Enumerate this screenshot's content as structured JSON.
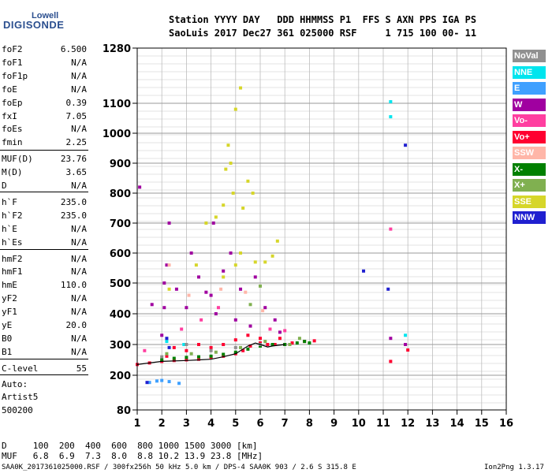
{
  "logo": {
    "top": "Lowell",
    "bottom": "DIGISONDE"
  },
  "header": {
    "line1": "Station YYYY DAY   DDD HHMMSS P1  FFS S AXN PPS IGA PS",
    "line2": "SaoLuis 2017 Dec27 361 025000 RSF     1 715 100 00- 11"
  },
  "params": [
    {
      "name": "foF2",
      "value": "6.500"
    },
    {
      "name": "foF1",
      "value": "N/A"
    },
    {
      "name": "foF1p",
      "value": "N/A"
    },
    {
      "name": "foE",
      "value": "N/A"
    },
    {
      "name": "foEp",
      "value": "0.39"
    },
    {
      "name": "fxI",
      "value": "7.05"
    },
    {
      "name": "foEs",
      "value": "N/A"
    },
    {
      "name": "fmin",
      "value": "2.25"
    },
    {
      "name": "MUF(D)",
      "value": "23.76"
    },
    {
      "name": "M(D)",
      "value": "3.65"
    },
    {
      "name": "D",
      "value": "N/A"
    },
    {
      "name": "h`F",
      "value": "235.0"
    },
    {
      "name": "h`F2",
      "value": "235.0"
    },
    {
      "name": "h`E",
      "value": "N/A"
    },
    {
      "name": "h`Es",
      "value": "N/A"
    },
    {
      "name": "hmF2",
      "value": "N/A"
    },
    {
      "name": "hmF1",
      "value": "N/A"
    },
    {
      "name": "hmE",
      "value": "110.0"
    },
    {
      "name": "yF2",
      "value": "N/A"
    },
    {
      "name": "yF1",
      "value": "N/A"
    },
    {
      "name": "yE",
      "value": "20.0"
    },
    {
      "name": "B0",
      "value": "N/A"
    },
    {
      "name": "B1",
      "value": "N/A"
    },
    {
      "name": "C-level",
      "value": "55"
    }
  ],
  "notes": {
    "auto": "Auto:",
    "artist": "Artist5",
    "version": "500200"
  },
  "legend": [
    {
      "label": "NoVal",
      "color": "#909090"
    },
    {
      "label": "NNE",
      "color": "#00e5ee"
    },
    {
      "label": "E",
      "color": "#3fa0ff"
    },
    {
      "label": "W",
      "color": "#a000a0"
    },
    {
      "label": "Vo-",
      "color": "#ff3fa0"
    },
    {
      "label": "Vo+",
      "color": "#ff0030"
    },
    {
      "label": "SSW",
      "color": "#ffb6a8"
    },
    {
      "label": "X-",
      "color": "#008000"
    },
    {
      "label": "X+",
      "color": "#80b050"
    },
    {
      "label": "SSE",
      "color": "#d6d62a"
    },
    {
      "label": "NNW",
      "color": "#2020d0"
    }
  ],
  "bottom": {
    "d_row": "D     100  200  400  600  800 1000 1500 3000 [km]",
    "muf_row": "MUF   6.8  6.9  7.3  8.0  8.8 10.2 13.9 23.8 [MHz]"
  },
  "footer": {
    "left": "SAA0K_2017361025000.RSF / 300fx256h 50 kHz 5.0 km / DPS-4 SAA0K 903 / 2.6 S 315.8 E",
    "right": "Ion2Png 1.3.17"
  },
  "chart_data": {
    "type": "scatter",
    "title": "",
    "xlabel": "",
    "ylabel": "",
    "xlim": [
      1,
      16
    ],
    "x_ticks": [
      1,
      2,
      3,
      4,
      5,
      6,
      7,
      8,
      9,
      10,
      11,
      12,
      13,
      14,
      15,
      16
    ],
    "y_ticks": [
      80,
      200,
      300,
      400,
      500,
      600,
      700,
      800,
      900,
      1000,
      1100,
      1280
    ],
    "y_scale": "nonlinear (height km)",
    "grid": true,
    "legend_placement": "right",
    "series": [
      {
        "name": "Vo+",
        "points": [
          [
            1.0,
            235
          ],
          [
            1.5,
            240
          ],
          [
            2.0,
            245
          ],
          [
            2.5,
            248
          ],
          [
            3.0,
            250
          ],
          [
            3.5,
            252
          ],
          [
            4.0,
            258
          ],
          [
            4.5,
            262
          ],
          [
            5.0,
            270
          ],
          [
            5.3,
            280
          ],
          [
            5.6,
            295
          ],
          [
            6.0,
            305
          ],
          [
            6.3,
            300
          ],
          [
            6.6,
            300
          ],
          [
            7.0,
            300
          ],
          [
            7.3,
            305
          ],
          [
            7.8,
            310
          ],
          [
            8.2,
            312
          ],
          [
            4.5,
            300
          ],
          [
            5.0,
            315
          ],
          [
            5.5,
            330
          ],
          [
            6.0,
            320
          ],
          [
            3.0,
            280
          ],
          [
            3.5,
            300
          ],
          [
            4.0,
            290
          ],
          [
            2.2,
            262
          ],
          [
            2.5,
            290
          ],
          [
            6.8,
            320
          ],
          [
            7.2,
            300
          ],
          [
            11.3,
            245
          ],
          [
            12.0,
            282
          ]
        ]
      },
      {
        "name": "W",
        "points": [
          [
            2.0,
            330
          ],
          [
            2.1,
            420
          ],
          [
            2.1,
            500
          ],
          [
            2.2,
            560
          ],
          [
            2.3,
            700
          ],
          [
            2.6,
            480
          ],
          [
            3.0,
            420
          ],
          [
            3.2,
            600
          ],
          [
            3.5,
            520
          ],
          [
            3.8,
            470
          ],
          [
            4.0,
            460
          ],
          [
            4.1,
            700
          ],
          [
            4.2,
            400
          ],
          [
            4.5,
            540
          ],
          [
            4.8,
            600
          ],
          [
            5.0,
            380
          ],
          [
            5.2,
            480
          ],
          [
            5.6,
            360
          ],
          [
            5.8,
            520
          ],
          [
            6.2,
            420
          ],
          [
            6.6,
            380
          ],
          [
            6.8,
            340
          ],
          [
            7.0,
            300
          ],
          [
            1.1,
            820
          ],
          [
            1.6,
            430
          ],
          [
            11.3,
            320
          ],
          [
            11.9,
            300
          ]
        ]
      },
      {
        "name": "SSE",
        "points": [
          [
            3.4,
            560
          ],
          [
            3.8,
            700
          ],
          [
            4.2,
            720
          ],
          [
            4.5,
            760
          ],
          [
            4.6,
            880
          ],
          [
            4.7,
            960
          ],
          [
            4.8,
            900
          ],
          [
            5.0,
            1080
          ],
          [
            5.2,
            1150
          ],
          [
            5.5,
            840
          ],
          [
            5.7,
            800
          ],
          [
            5.8,
            570
          ],
          [
            6.2,
            570
          ],
          [
            6.5,
            590
          ],
          [
            6.7,
            640
          ],
          [
            5.0,
            560
          ],
          [
            5.2,
            600
          ],
          [
            4.5,
            520
          ],
          [
            2.3,
            480
          ],
          [
            5.3,
            750
          ],
          [
            4.9,
            800
          ]
        ]
      },
      {
        "name": "X-",
        "points": [
          [
            2.0,
            250
          ],
          [
            2.5,
            255
          ],
          [
            3.0,
            258
          ],
          [
            3.5,
            260
          ],
          [
            4.0,
            262
          ],
          [
            4.5,
            268
          ],
          [
            5.0,
            275
          ],
          [
            5.5,
            285
          ],
          [
            6.0,
            295
          ],
          [
            6.5,
            300
          ],
          [
            7.0,
            300
          ],
          [
            7.5,
            305
          ],
          [
            7.8,
            310
          ],
          [
            8.0,
            305
          ]
        ]
      },
      {
        "name": "X+",
        "points": [
          [
            2.2,
            270
          ],
          [
            3.2,
            270
          ],
          [
            4.2,
            275
          ],
          [
            5.2,
            290
          ],
          [
            6.2,
            310
          ],
          [
            7.2,
            300
          ],
          [
            7.6,
            320
          ],
          [
            5.6,
            430
          ],
          [
            6.0,
            490
          ]
        ]
      },
      {
        "name": "NNE",
        "points": [
          [
            2.2,
            310
          ],
          [
            2.9,
            300
          ],
          [
            11.3,
            1105
          ],
          [
            11.3,
            1055
          ],
          [
            11.9,
            330
          ]
        ]
      },
      {
        "name": "E",
        "points": [
          [
            1.5,
            175
          ],
          [
            1.8,
            180
          ],
          [
            2.0,
            182
          ],
          [
            2.3,
            178
          ],
          [
            2.7,
            172
          ]
        ]
      },
      {
        "name": "NNW",
        "points": [
          [
            1.4,
            175
          ],
          [
            2.2,
            320
          ],
          [
            2.3,
            290
          ],
          [
            11.9,
            960
          ],
          [
            10.2,
            540
          ],
          [
            11.2,
            480
          ]
        ]
      },
      {
        "name": "Vo-",
        "points": [
          [
            1.3,
            280
          ],
          [
            2.8,
            350
          ],
          [
            3.6,
            380
          ],
          [
            4.3,
            420
          ],
          [
            6.4,
            350
          ],
          [
            7.0,
            345
          ],
          [
            11.3,
            680
          ]
        ]
      },
      {
        "name": "SSW",
        "points": [
          [
            2.3,
            560
          ],
          [
            3.1,
            460
          ],
          [
            4.4,
            480
          ],
          [
            5.4,
            470
          ],
          [
            6.1,
            410
          ]
        ]
      },
      {
        "name": "NoVal",
        "points": [
          [
            2.0,
            260
          ],
          [
            3.0,
            300
          ],
          [
            4.0,
            280
          ],
          [
            5.0,
            290
          ],
          [
            6.0,
            300
          ]
        ]
      }
    ],
    "trace_line": {
      "points": [
        [
          1.0,
          235
        ],
        [
          2.0,
          245
        ],
        [
          3.0,
          248
        ],
        [
          4.0,
          252
        ],
        [
          4.5,
          260
        ],
        [
          5.0,
          270
        ],
        [
          5.5,
          295
        ],
        [
          5.8,
          305
        ],
        [
          6.0,
          300
        ],
        [
          6.3,
          292
        ],
        [
          6.5,
          295
        ],
        [
          7.0,
          300
        ]
      ]
    }
  }
}
